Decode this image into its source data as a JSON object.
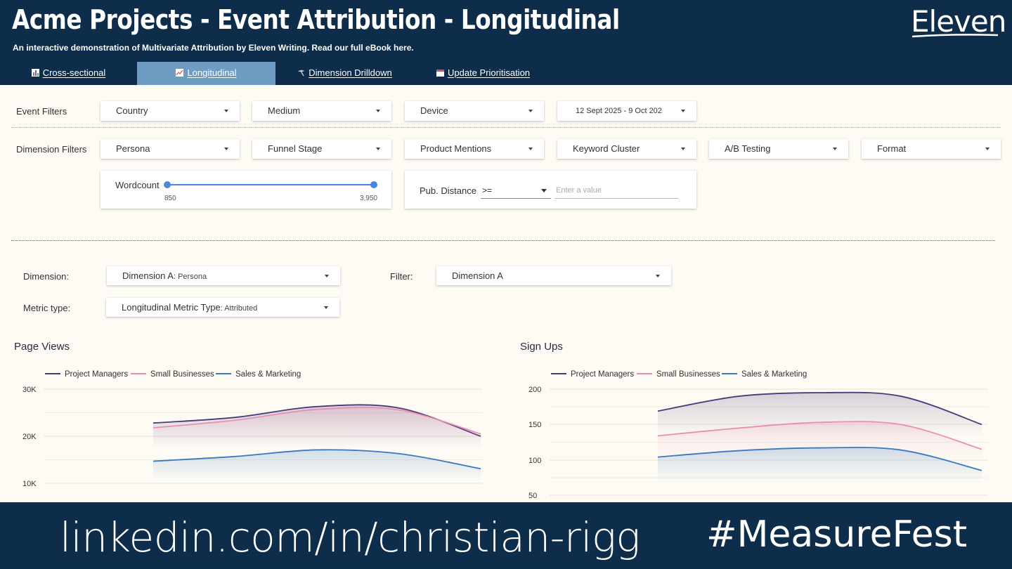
{
  "header": {
    "title": "Acme Projects - Event Attribution - Longitudinal",
    "subtitle": "An interactive demonstration of Multivariate Attribution by Eleven Writing. Read our full eBook here.",
    "logo": "Eleven"
  },
  "tabs": [
    {
      "label": "Cross-sectional",
      "icon": "bar-chart-icon",
      "active": false
    },
    {
      "label": "Longitudinal",
      "icon": "line-chart-icon",
      "active": true
    },
    {
      "label": "Dimension Drilldown",
      "icon": "pick-icon",
      "active": false
    },
    {
      "label": "Update Prioritisation",
      "icon": "calendar-icon",
      "active": false
    }
  ],
  "event_filters": {
    "label": "Event Filters",
    "country": "Country",
    "medium": "Medium",
    "device": "Device",
    "date_range": "12 Sept 2025 - 9 Oct 202"
  },
  "dimension_filters": {
    "label": "Dimension Filters",
    "persona": "Persona",
    "funnel_stage": "Funnel Stage",
    "product_mentions": "Product Mentions",
    "keyword_cluster": "Keyword Cluster",
    "ab_testing": "A/B Testing",
    "format": "Format",
    "wordcount": {
      "label": "Wordcount",
      "min": "850",
      "max": "3,950"
    },
    "pub_distance": {
      "label": "Pub. Distance",
      "operator": ">=",
      "placeholder": "Enter a value"
    }
  },
  "controls": {
    "dimension_label": "Dimension:",
    "dimension_value": "Dimension A",
    "dimension_sub": ": Persona",
    "filter_label": "Filter:",
    "filter_value": "Dimension A",
    "metric_label": "Metric type:",
    "metric_value": "Longitudinal Metric Type",
    "metric_sub": ": Attributed"
  },
  "colors": {
    "header_bg": "#0d2d4a",
    "project_managers": "#4b3a78",
    "small_businesses": "#e88fb0",
    "sales_marketing": "#3a78c2",
    "active_tab": "#6f9cc3"
  },
  "chart_data": [
    {
      "type": "area",
      "title": "Page Views",
      "y_ticks": [
        "30K",
        "20K",
        "10K"
      ],
      "ylim": [
        10000,
        30000
      ],
      "x": [
        1,
        2,
        3,
        4,
        5
      ],
      "series": [
        {
          "name": "Project Managers",
          "values": [
            22800,
            24000,
            26300,
            26000,
            20000
          ]
        },
        {
          "name": "Small Businesses",
          "values": [
            21800,
            23400,
            25700,
            25600,
            20500
          ]
        },
        {
          "name": "Sales & Marketing",
          "values": [
            14700,
            15700,
            17100,
            16300,
            13100
          ]
        }
      ]
    },
    {
      "type": "area",
      "title": "Sign Ups",
      "y_ticks": [
        "200",
        "150",
        "100",
        "50"
      ],
      "ylim": [
        50,
        200
      ],
      "x": [
        1,
        2,
        3,
        4,
        5
      ],
      "series": [
        {
          "name": "Project Managers",
          "values": [
            169,
            190,
            195,
            190,
            150
          ]
        },
        {
          "name": "Small Businesses",
          "values": [
            134,
            145,
            153,
            150,
            115
          ]
        },
        {
          "name": "Sales & Marketing",
          "values": [
            104,
            113,
            117,
            114,
            85
          ]
        }
      ]
    }
  ],
  "footer": {
    "left": "linkedin.com/in/christian-rigg",
    "right": "#MeasureFest"
  }
}
